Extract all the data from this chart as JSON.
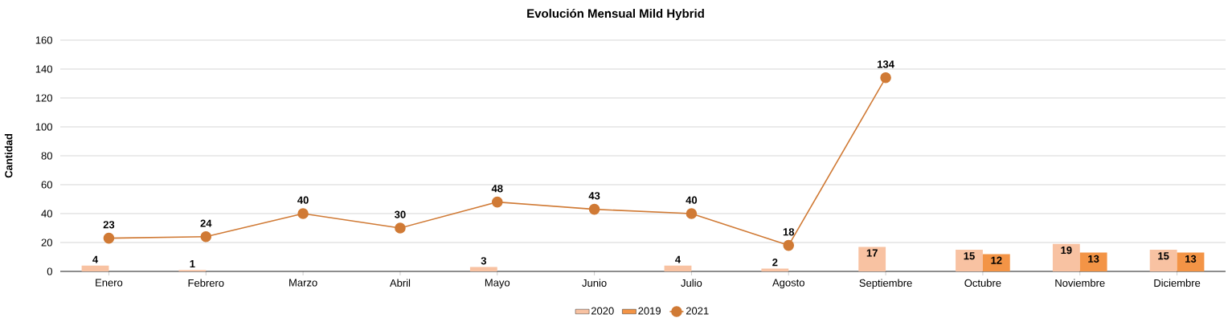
{
  "chart_data": {
    "type": "bar",
    "title": "Evolución Mensual Mild Hybrid",
    "ylabel": "Cantidad",
    "categories": [
      "Enero",
      "Febrero",
      "Marzo",
      "Abril",
      "Mayo",
      "Junio",
      "Julio",
      "Agosto",
      "Septiembre",
      "Octubre",
      "Noviembre",
      "Diciembre"
    ],
    "series": [
      {
        "name": "2020",
        "color": "#f8c2a2",
        "values": [
          4,
          1,
          null,
          null,
          3,
          null,
          4,
          2,
          17,
          15,
          19,
          15
        ]
      },
      {
        "name": "2019",
        "color": "#f39446",
        "values": [
          null,
          null,
          null,
          null,
          null,
          null,
          null,
          null,
          null,
          12,
          13,
          13
        ]
      },
      {
        "name": "2021",
        "type": "line",
        "color": "#d07a35",
        "values": [
          23,
          24,
          40,
          30,
          48,
          43,
          40,
          18,
          134,
          null,
          null,
          null
        ]
      }
    ],
    "ylim": [
      0,
      160
    ],
    "yticks": [
      0,
      20,
      40,
      60,
      80,
      100,
      120,
      140,
      160
    ],
    "grid": "y",
    "legend": "bottom",
    "marker": "circle",
    "line_style": "solid",
    "data_labels": true
  }
}
